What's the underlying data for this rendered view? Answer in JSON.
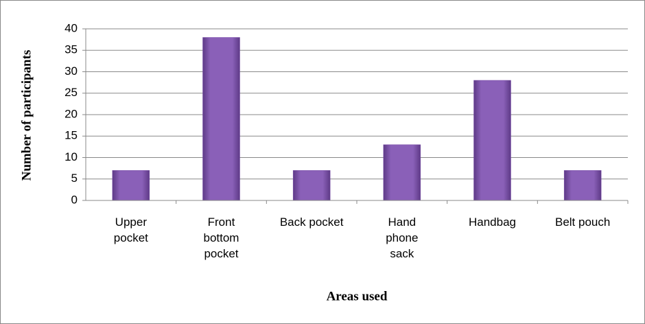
{
  "chart_data": {
    "type": "bar",
    "categories": [
      "Upper pocket",
      "Front bottom pocket",
      "Back pocket",
      "Hand phone sack",
      "Handbag",
      "Belt pouch"
    ],
    "values": [
      7,
      38,
      7,
      13,
      28,
      7
    ],
    "color": "#7b4fa8",
    "xlabel": "Areas used",
    "ylabel": "Number of participants",
    "ylim": [
      0,
      40
    ],
    "yticks": [
      0,
      5,
      10,
      15,
      20,
      25,
      30,
      35,
      40
    ],
    "grid": true
  }
}
